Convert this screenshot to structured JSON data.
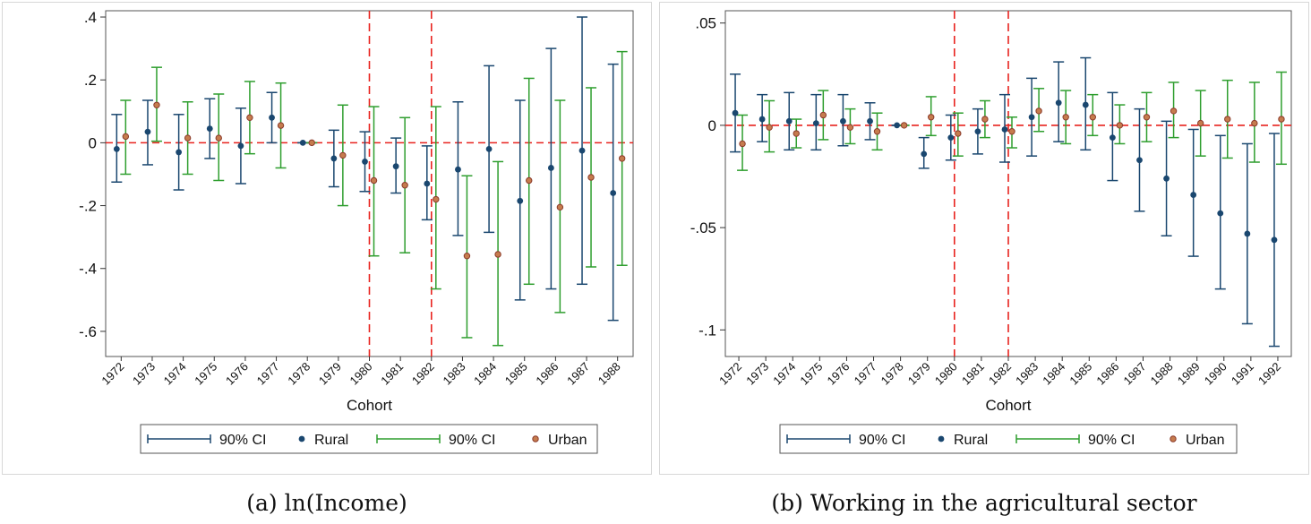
{
  "colors": {
    "rural": "#1a476f",
    "urban_ci": "#2e9e2e",
    "urban_dot_fill": "#c67c4e",
    "urban_dot_stroke": "#8b3a2a",
    "refline": "#e8231e"
  },
  "chart_data": [
    {
      "type": "scatter",
      "subtype": "coefficient-plot-with-ci",
      "caption": "(a) ln(Income)",
      "xlabel": "Cohort",
      "ylabel": "",
      "categories": [
        "1972",
        "1973",
        "1974",
        "1975",
        "1976",
        "1977",
        "1978",
        "1979",
        "1980",
        "1981",
        "1982",
        "1983",
        "1984",
        "1985",
        "1986",
        "1987",
        "1988"
      ],
      "ylim": [
        -0.68,
        0.42
      ],
      "yticks": [
        0.4,
        0.2,
        0,
        -0.2,
        -0.4,
        -0.6
      ],
      "ytick_labels": [
        ".4",
        ".2",
        "0",
        "-.2",
        "-.4",
        "-.6"
      ],
      "vlines": [
        "1980",
        "1982"
      ],
      "hline": 0,
      "series": [
        {
          "name": "Rural",
          "ci_name": "90% CI",
          "estimate": [
            -0.02,
            0.035,
            -0.03,
            0.045,
            -0.01,
            0.08,
            0,
            -0.05,
            -0.06,
            -0.075,
            -0.13,
            -0.085,
            -0.02,
            -0.185,
            -0.08,
            -0.025,
            -0.16
          ],
          "lower": [
            -0.125,
            -0.07,
            -0.15,
            -0.05,
            -0.13,
            0,
            0,
            -0.14,
            -0.155,
            -0.16,
            -0.245,
            -0.295,
            -0.285,
            -0.5,
            -0.465,
            -0.45,
            -0.565
          ],
          "upper": [
            0.09,
            0.135,
            0.09,
            0.14,
            0.11,
            0.16,
            0,
            0.04,
            0.035,
            0.015,
            -0.01,
            0.13,
            0.245,
            0.135,
            0.3,
            0.4,
            0.25
          ]
        },
        {
          "name": "Urban",
          "ci_name": "90% CI",
          "estimate": [
            0.02,
            0.12,
            0.015,
            0.015,
            0.08,
            0.055,
            0,
            -0.04,
            -0.12,
            -0.135,
            -0.18,
            -0.36,
            -0.355,
            -0.12,
            -0.205,
            -0.11,
            -0.05
          ],
          "lower": [
            -0.1,
            0.005,
            -0.1,
            -0.12,
            -0.035,
            -0.08,
            0,
            -0.2,
            -0.36,
            -0.35,
            -0.465,
            -0.62,
            -0.645,
            -0.45,
            -0.54,
            -0.395,
            -0.39
          ],
          "upper": [
            0.135,
            0.24,
            0.13,
            0.155,
            0.195,
            0.19,
            0,
            0.12,
            0.115,
            0.08,
            0.115,
            -0.105,
            -0.06,
            0.205,
            0.135,
            0.175,
            0.29
          ]
        }
      ],
      "legend": [
        "90% CI",
        "Rural",
        "90% CI",
        "Urban"
      ],
      "legend_position": "bottom"
    },
    {
      "type": "scatter",
      "subtype": "coefficient-plot-with-ci",
      "caption": "(b) Working in the agricultural sector",
      "xlabel": "Cohort",
      "ylabel": "",
      "categories": [
        "1972",
        "1973",
        "1974",
        "1975",
        "1976",
        "1977",
        "1978",
        "1979",
        "1980",
        "1981",
        "1982",
        "1983",
        "1984",
        "1985",
        "1986",
        "1987",
        "1988",
        "1989",
        "1990",
        "1991",
        "1992"
      ],
      "ylim": [
        -0.113,
        0.056
      ],
      "yticks": [
        0.05,
        0,
        -0.05,
        -0.1
      ],
      "ytick_labels": [
        ".05",
        "0",
        "-.05",
        "-.1"
      ],
      "vlines": [
        "1980",
        "1982"
      ],
      "hline": 0,
      "series": [
        {
          "name": "Rural",
          "ci_name": "90% CI",
          "estimate": [
            0.006,
            0.003,
            0.002,
            0.001,
            0.002,
            0.002,
            0,
            -0.014,
            -0.006,
            -0.003,
            -0.002,
            0.004,
            0.011,
            0.01,
            -0.006,
            -0.017,
            -0.026,
            -0.034,
            -0.043,
            -0.053,
            -0.056
          ],
          "lower": [
            -0.013,
            -0.008,
            -0.012,
            -0.012,
            -0.01,
            -0.007,
            0,
            -0.021,
            -0.017,
            -0.014,
            -0.018,
            -0.015,
            -0.008,
            -0.012,
            -0.027,
            -0.042,
            -0.054,
            -0.064,
            -0.08,
            -0.097,
            -0.108
          ],
          "upper": [
            0.025,
            0.015,
            0.016,
            0.015,
            0.015,
            0.011,
            0,
            -0.006,
            0.005,
            0.008,
            0.015,
            0.023,
            0.031,
            0.033,
            0.016,
            0.008,
            0.002,
            -0.002,
            -0.005,
            -0.009,
            -0.004
          ]
        },
        {
          "name": "Urban",
          "ci_name": "90% CI",
          "estimate": [
            -0.009,
            -0.001,
            -0.004,
            0.005,
            -0.001,
            -0.003,
            0,
            0.004,
            -0.004,
            0.003,
            -0.003,
            0.007,
            0.004,
            0.004,
            0,
            0.004,
            0.007,
            0.001,
            0.003,
            0.001,
            0.003
          ],
          "lower": [
            -0.022,
            -0.013,
            -0.011,
            -0.007,
            -0.009,
            -0.012,
            0,
            -0.005,
            -0.015,
            -0.006,
            -0.011,
            -0.003,
            -0.009,
            -0.005,
            -0.009,
            -0.008,
            -0.006,
            -0.015,
            -0.016,
            -0.018,
            -0.019
          ],
          "upper": [
            0.005,
            0.012,
            0.003,
            0.017,
            0.008,
            0.006,
            0,
            0.014,
            0.006,
            0.012,
            0.004,
            0.018,
            0.017,
            0.015,
            0.01,
            0.016,
            0.021,
            0.017,
            0.022,
            0.021,
            0.026
          ]
        }
      ],
      "legend": [
        "90% CI",
        "Rural",
        "90% CI",
        "Urban"
      ],
      "legend_position": "bottom"
    }
  ]
}
